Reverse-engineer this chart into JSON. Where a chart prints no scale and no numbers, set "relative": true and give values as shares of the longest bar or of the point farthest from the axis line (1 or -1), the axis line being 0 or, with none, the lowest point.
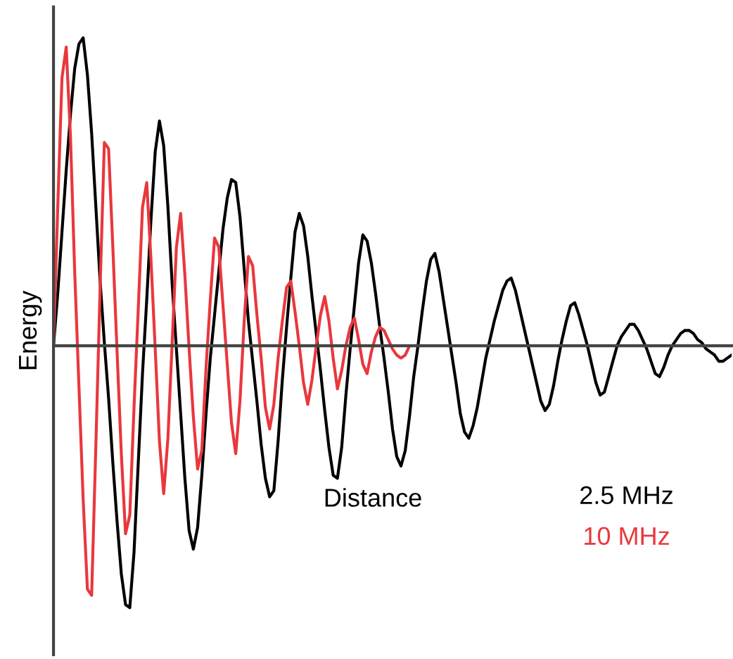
{
  "chart_data": {
    "type": "line",
    "relative": true,
    "ylabel": "Energy",
    "xlabel": "Distance",
    "line_style": "solid",
    "categories": [
      null,
      null,
      null,
      null,
      null,
      null,
      null,
      null,
      null,
      null,
      null,
      null,
      null,
      null,
      null,
      null,
      null,
      null,
      null,
      null,
      null,
      null,
      null,
      null,
      null,
      null,
      null,
      null,
      null,
      null,
      null,
      null,
      null,
      null,
      null,
      null,
      null,
      null,
      null,
      null,
      null,
      null,
      null,
      null,
      null,
      null,
      null,
      null,
      null,
      null,
      null,
      null,
      null,
      null,
      null,
      null,
      null,
      null,
      null,
      null,
      null,
      null,
      null,
      null,
      null,
      null,
      null,
      null,
      null,
      null,
      null,
      null,
      null,
      null,
      null,
      null,
      null,
      null,
      null,
      null,
      null,
      null,
      null,
      null,
      null,
      null,
      null,
      null,
      null,
      null,
      null,
      null,
      null,
      null,
      null,
      null,
      null,
      null,
      null,
      null,
      null,
      null,
      null,
      null,
      null,
      null,
      null,
      null,
      null,
      null,
      null,
      null,
      null,
      null,
      null,
      null,
      null,
      null,
      null,
      null,
      null,
      null,
      null,
      null,
      null,
      null,
      null,
      null,
      null,
      null,
      null,
      null,
      null,
      null,
      null,
      null,
      null,
      null,
      null,
      null,
      null,
      null,
      null,
      null,
      null,
      null,
      null,
      null,
      null,
      null,
      null,
      null,
      null,
      null,
      null,
      null,
      null,
      null,
      null,
      null,
      null
    ],
    "series": [
      {
        "name": "2.5 MHz",
        "color": "#000000",
        "values": [
          0.0,
          0.17,
          0.37,
          0.57,
          0.75,
          0.9,
          0.98,
          1.0,
          0.88,
          0.69,
          0.45,
          0.21,
          0.01,
          -0.17,
          -0.38,
          -0.57,
          -0.74,
          -0.84,
          -0.85,
          -0.67,
          -0.38,
          -0.09,
          0.15,
          0.41,
          0.63,
          0.73,
          0.65,
          0.45,
          0.2,
          -0.01,
          -0.22,
          -0.43,
          -0.6,
          -0.66,
          -0.59,
          -0.42,
          -0.22,
          -0.04,
          0.1,
          0.24,
          0.38,
          0.48,
          0.54,
          0.53,
          0.42,
          0.25,
          0.08,
          -0.05,
          -0.18,
          -0.32,
          -0.43,
          -0.49,
          -0.47,
          -0.31,
          -0.11,
          0.06,
          0.22,
          0.37,
          0.43,
          0.39,
          0.29,
          0.16,
          0.04,
          -0.08,
          -0.21,
          -0.33,
          -0.42,
          -0.43,
          -0.33,
          -0.16,
          -0.01,
          0.13,
          0.27,
          0.36,
          0.34,
          0.27,
          0.17,
          0.06,
          -0.04,
          -0.15,
          -0.27,
          -0.36,
          -0.39,
          -0.34,
          -0.23,
          -0.1,
          0.0,
          0.11,
          0.21,
          0.28,
          0.3,
          0.24,
          0.15,
          0.06,
          -0.03,
          -0.12,
          -0.22,
          -0.28,
          -0.3,
          -0.26,
          -0.2,
          -0.12,
          -0.04,
          0.02,
          0.08,
          0.13,
          0.18,
          0.21,
          0.22,
          0.18,
          0.12,
          0.06,
          0.0,
          -0.06,
          -0.12,
          -0.18,
          -0.21,
          -0.19,
          -0.13,
          -0.05,
          0.02,
          0.08,
          0.13,
          0.14,
          0.1,
          0.05,
          0.0,
          -0.06,
          -0.12,
          -0.16,
          -0.15,
          -0.1,
          -0.05,
          0.0,
          0.03,
          0.05,
          0.07,
          0.07,
          0.05,
          0.02,
          -0.01,
          -0.05,
          -0.09,
          -0.1,
          -0.07,
          -0.03,
          0.0,
          0.02,
          0.04,
          0.05,
          0.05,
          0.04,
          0.02,
          0.01,
          -0.01,
          -0.02,
          -0.03,
          -0.05,
          -0.05,
          -0.04,
          -0.03
        ]
      },
      {
        "name": "10 MHz",
        "color": "#e8383d",
        "values": [
          0.0,
          0.45,
          0.87,
          0.97,
          0.68,
          0.24,
          -0.13,
          -0.5,
          -0.79,
          -0.81,
          -0.32,
          0.19,
          0.66,
          0.64,
          0.32,
          -0.02,
          -0.35,
          -0.61,
          -0.55,
          -0.2,
          0.12,
          0.45,
          0.53,
          0.28,
          -0.01,
          -0.31,
          -0.48,
          -0.3,
          0.01,
          0.32,
          0.43,
          0.23,
          -0.01,
          -0.23,
          -0.4,
          -0.34,
          -0.07,
          0.15,
          0.35,
          0.32,
          0.13,
          -0.06,
          -0.25,
          -0.35,
          -0.18,
          0.08,
          0.29,
          0.26,
          0.1,
          -0.04,
          -0.2,
          -0.27,
          -0.19,
          -0.04,
          0.08,
          0.19,
          0.21,
          0.11,
          0.0,
          -0.12,
          -0.19,
          -0.11,
          0.0,
          0.1,
          0.16,
          0.08,
          -0.04,
          -0.14,
          -0.08,
          0.0,
          0.06,
          0.09,
          0.02,
          -0.06,
          -0.09,
          -0.02,
          0.03,
          0.06,
          0.05,
          0.02,
          -0.01,
          -0.03,
          -0.04,
          -0.03,
          0,
          null,
          null,
          null,
          null,
          null,
          null,
          null,
          null,
          null,
          null,
          null,
          null,
          null,
          null,
          null,
          null,
          null,
          null,
          null,
          null,
          null,
          null,
          null,
          null,
          null,
          null,
          null,
          null,
          null,
          null,
          null,
          null,
          null,
          null,
          null,
          null,
          null,
          null,
          null,
          null,
          null,
          null,
          null,
          null,
          null,
          null,
          null,
          null,
          null,
          null,
          null,
          null,
          null,
          null,
          null,
          null,
          null,
          null,
          null,
          null,
          null,
          null,
          null,
          null,
          null,
          null,
          null,
          null,
          null,
          null,
          null,
          null,
          null,
          null,
          null,
          null
        ]
      }
    ]
  }
}
